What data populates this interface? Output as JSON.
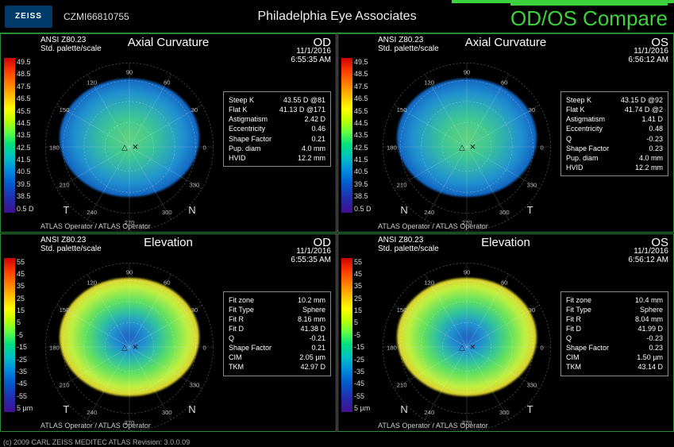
{
  "header": {
    "brand": "ZEISS",
    "patient_id": "CZMI66810755",
    "center": "Philadelphia Eye Associates",
    "mode": "OD/OS Compare"
  },
  "footer": "(c) 2009 CARL ZEISS MEDITEC    ATLAS    Revision: 3.0.0.09",
  "panels": [
    {
      "title": "Axial Curvature",
      "eye": "OD",
      "std_line1": "ANSI Z80.23",
      "std_line2": "Std. palette/scale",
      "date": "11/1/2016",
      "time": "6:55:35 AM",
      "operator": "ATLAS Operator / ATLAS Operator",
      "t_side": "T",
      "n_side": "N",
      "scale": [
        "49.5",
        "48.5",
        "47.5",
        "46.5",
        "45.5",
        "44.5",
        "43.5",
        "42.5",
        "41.5",
        "40.5",
        "39.5",
        "38.5",
        "0.5 D"
      ],
      "map_kind": "axial",
      "rows": [
        {
          "k": "Steep K",
          "v": "43.55 D @81"
        },
        {
          "k": "Flat K",
          "v": "41.13 D @171"
        },
        {
          "k": "Astigmatism",
          "v": "2.42 D"
        },
        {
          "k": "Eccentricity",
          "v": "0.46"
        },
        {
          "k": "Shape Factor",
          "v": "0.21"
        },
        {
          "k": "Pup. diam",
          "v": "4.0 mm"
        },
        {
          "k": "HVID",
          "v": "12.2 mm"
        }
      ]
    },
    {
      "title": "Axial Curvature",
      "eye": "OS",
      "std_line1": "ANSI Z80.23",
      "std_line2": "Std. palette/scale",
      "date": "11/1/2016",
      "time": "6:56:12 AM",
      "operator": "ATLAS Operator / ATLAS Operator",
      "t_side": "N",
      "n_side": "T",
      "scale": [
        "49.5",
        "48.5",
        "47.5",
        "46.5",
        "45.5",
        "44.5",
        "43.5",
        "42.5",
        "41.5",
        "40.5",
        "39.5",
        "38.5",
        "0.5 D"
      ],
      "map_kind": "axial",
      "rows": [
        {
          "k": "Steep K",
          "v": "43.15 D @92"
        },
        {
          "k": "Flat K",
          "v": "41.74 D @2"
        },
        {
          "k": "Astigmatism",
          "v": "1.41 D"
        },
        {
          "k": "Eccentricity",
          "v": "0.48"
        },
        {
          "k": "Q",
          "v": "-0.23"
        },
        {
          "k": "Shape Factor",
          "v": "0.23"
        },
        {
          "k": "Pup. diam",
          "v": "4.0 mm"
        },
        {
          "k": "HVID",
          "v": "12.2 mm"
        }
      ]
    },
    {
      "title": "Elevation",
      "eye": "OD",
      "std_line1": "ANSI Z80.23",
      "std_line2": "Std. palette/scale",
      "date": "11/1/2016",
      "time": "6:55:35 AM",
      "operator": "ATLAS Operator / ATLAS Operator",
      "t_side": "T",
      "n_side": "N",
      "scale": [
        "55",
        "45",
        "35",
        "25",
        "15",
        "5",
        "-5",
        "-15",
        "-25",
        "-35",
        "-45",
        "-55",
        "5 µm"
      ],
      "map_kind": "elev",
      "rows": [
        {
          "k": "Fit zone",
          "v": "10.2 mm"
        },
        {
          "k": "Fit Type",
          "v": "Sphere"
        },
        {
          "k": "Fit R",
          "v": "8.16 mm"
        },
        {
          "k": "Fit D",
          "v": "41.38 D"
        },
        {
          "k": "Q",
          "v": "-0.21"
        },
        {
          "k": "Shape Factor",
          "v": "0.21"
        },
        {
          "k": "CIM",
          "v": "2.05 µm"
        },
        {
          "k": "TKM",
          "v": "42.97 D"
        }
      ]
    },
    {
      "title": "Elevation",
      "eye": "OS",
      "std_line1": "ANSI Z80.23",
      "std_line2": "Std. palette/scale",
      "date": "11/1/2016",
      "time": "6:56:12 AM",
      "operator": "ATLAS Operator / ATLAS Operator",
      "t_side": "N",
      "n_side": "T",
      "scale": [
        "55",
        "45",
        "35",
        "25",
        "15",
        "5",
        "-5",
        "-15",
        "-25",
        "-35",
        "-45",
        "-55",
        "5 µm"
      ],
      "map_kind": "elev",
      "rows": [
        {
          "k": "Fit zone",
          "v": "10.4 mm"
        },
        {
          "k": "Fit Type",
          "v": "Sphere"
        },
        {
          "k": "Fit R",
          "v": "8.04 mm"
        },
        {
          "k": "Fit D",
          "v": "41.99 D"
        },
        {
          "k": "Q",
          "v": "-0.23"
        },
        {
          "k": "Shape Factor",
          "v": "0.23"
        },
        {
          "k": "CIM",
          "v": "1.50 µm"
        },
        {
          "k": "TKM",
          "v": "43.14 D"
        }
      ]
    }
  ],
  "polar_degrees": [
    "0",
    "30",
    "60",
    "90",
    "120",
    "150",
    "180",
    "210",
    "240",
    "270",
    "300",
    "330"
  ]
}
